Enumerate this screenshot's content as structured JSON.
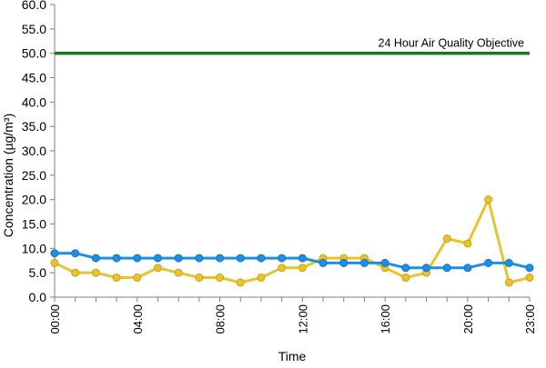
{
  "chart_data": {
    "type": "line",
    "title": "",
    "xlabel": "Time",
    "ylabel": "Concentration (µg/m³)",
    "ylim": [
      0,
      60
    ],
    "yticks": [
      "0.0",
      "5.0",
      "10.0",
      "15.0",
      "20.0",
      "25.0",
      "30.0",
      "35.0",
      "40.0",
      "45.0",
      "50.0",
      "55.0",
      "60.0"
    ],
    "x_tick_labels": [
      {
        "hour": 0,
        "label": "00:00"
      },
      {
        "hour": 4,
        "label": "04:00"
      },
      {
        "hour": 8,
        "label": "08:00"
      },
      {
        "hour": 12,
        "label": "12:00"
      },
      {
        "hour": 16,
        "label": "16:00"
      },
      {
        "hour": 20,
        "label": "20:00"
      },
      {
        "hour": 23,
        "label": "23:00"
      }
    ],
    "grid": false,
    "legend": "none",
    "x": [
      0,
      1,
      2,
      3,
      4,
      5,
      6,
      7,
      8,
      9,
      10,
      11,
      12,
      13,
      14,
      15,
      16,
      17,
      18,
      19,
      20,
      21,
      22,
      23
    ],
    "series": [
      {
        "color": "#1e8fe6",
        "values": [
          9,
          9,
          8,
          8,
          8,
          8,
          8,
          8,
          8,
          8,
          8,
          8,
          8,
          7,
          7,
          7,
          7,
          6,
          6,
          6,
          6,
          7,
          7,
          6
        ]
      },
      {
        "color": "#e8c32c",
        "values": [
          7,
          5,
          5,
          4,
          4,
          6,
          5,
          4,
          4,
          3,
          4,
          6,
          6,
          8,
          8,
          8,
          6,
          4,
          5,
          12,
          11,
          20,
          3,
          4
        ]
      }
    ],
    "reference_line": {
      "value": 50,
      "label": "24 Hour Air Quality Objective",
      "color": "#1a7a1a"
    }
  }
}
